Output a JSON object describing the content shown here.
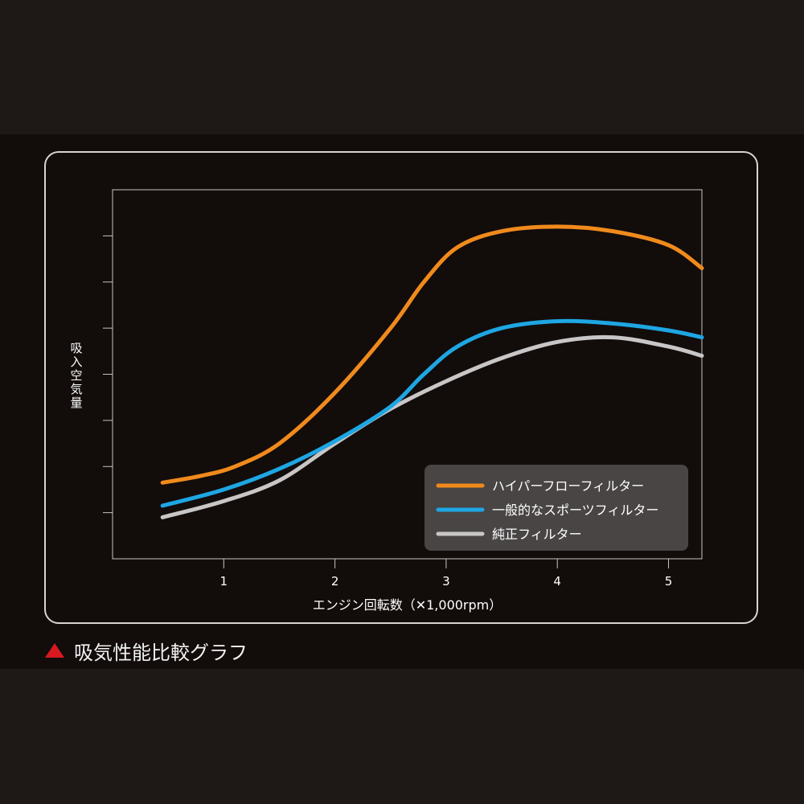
{
  "caption": {
    "text": "吸気性能比較グラフ",
    "marker_icon": "triangle-icon",
    "marker_color": "#d9181f"
  },
  "chart_data": {
    "type": "line",
    "title": "",
    "xlabel": "エンジン回転数（✕1,000rpm）",
    "ylabel": "吸入空気量",
    "xlim": [
      0,
      5.3
    ],
    "ylim": [
      0,
      8
    ],
    "x_ticks": [
      1,
      2,
      3,
      4,
      5
    ],
    "y_ticks": [
      1,
      2,
      3,
      4,
      5,
      6,
      7
    ],
    "y_tick_labels_shown": false,
    "grid": false,
    "legend_position": "bottom-right",
    "series": [
      {
        "name": "ハイパーフローフィルター",
        "color": "#f08a1c",
        "x": [
          0.45,
          0.8,
          1.1,
          1.5,
          2.0,
          2.5,
          2.8,
          3.1,
          3.5,
          4.0,
          4.5,
          5.0,
          5.3
        ],
        "y": [
          1.65,
          1.8,
          2.0,
          2.5,
          3.6,
          5.0,
          6.0,
          6.75,
          7.1,
          7.2,
          7.1,
          6.8,
          6.3
        ]
      },
      {
        "name": "一般的なスポーツフィルター",
        "color": "#1ea6e3",
        "x": [
          0.45,
          1.0,
          1.5,
          2.0,
          2.5,
          2.8,
          3.1,
          3.5,
          4.0,
          4.5,
          5.0,
          5.3
        ],
        "y": [
          1.15,
          1.5,
          1.95,
          2.55,
          3.3,
          4.0,
          4.6,
          5.0,
          5.15,
          5.1,
          4.95,
          4.8
        ]
      },
      {
        "name": "純正フィルター",
        "color": "#c8c6c6",
        "x": [
          0.45,
          1.0,
          1.5,
          2.0,
          2.5,
          3.0,
          3.5,
          4.0,
          4.5,
          5.0,
          5.3
        ],
        "y": [
          0.9,
          1.25,
          1.7,
          2.5,
          3.25,
          3.85,
          4.35,
          4.7,
          4.8,
          4.6,
          4.4
        ]
      }
    ]
  }
}
